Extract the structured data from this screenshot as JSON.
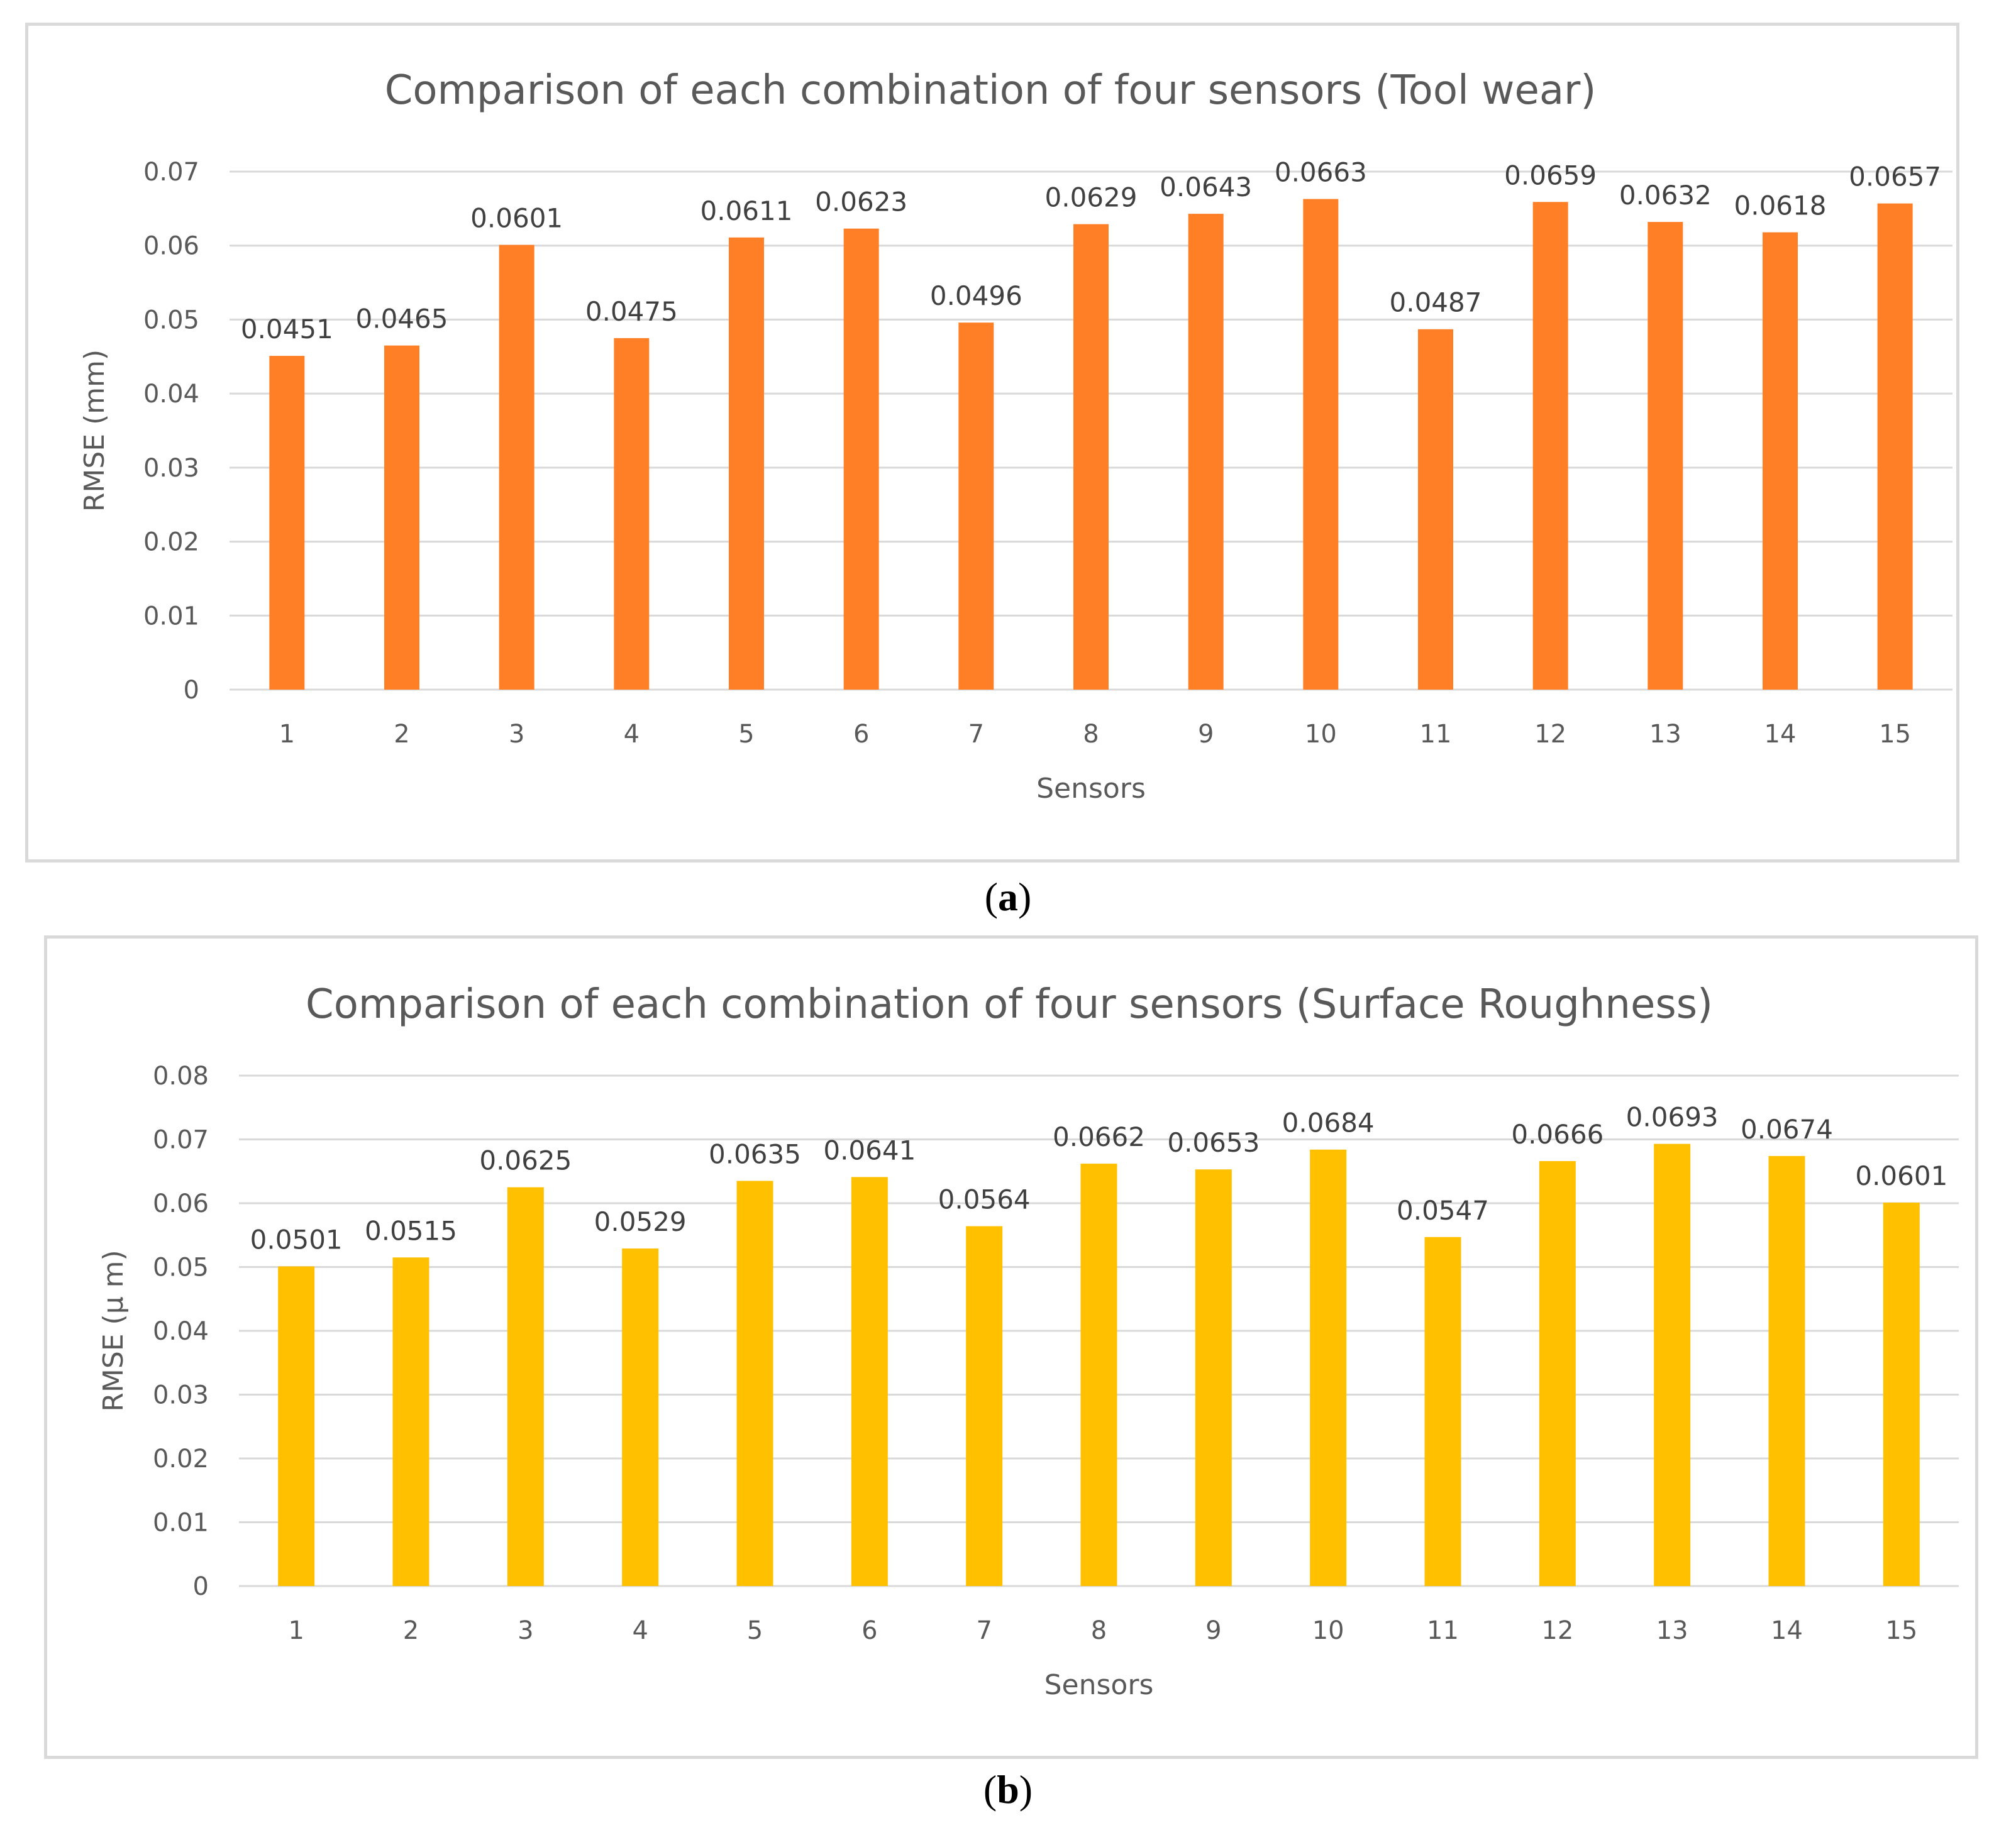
{
  "chart_data": [
    {
      "type": "bar",
      "title": "Comparison of each combination of four sensors (Tool wear)",
      "xlabel": "Sensors",
      "ylabel": "RMSE (mm)",
      "categories": [
        "1",
        "2",
        "3",
        "4",
        "5",
        "6",
        "7",
        "8",
        "9",
        "10",
        "11",
        "12",
        "13",
        "14",
        "15"
      ],
      "values": [
        0.0451,
        0.0465,
        0.0601,
        0.0475,
        0.0611,
        0.0623,
        0.0496,
        0.0629,
        0.0643,
        0.0663,
        0.0487,
        0.0659,
        0.0632,
        0.0618,
        0.0657
      ],
      "labels": [
        "0.0451",
        "0.0465",
        "0.0601",
        "0.0475",
        "0.0611",
        "0.0623",
        "0.0496",
        "0.0629",
        "0.0643",
        "0.0663",
        "0.0487",
        "0.0659",
        "0.0632",
        "0.0618",
        "0.0657"
      ],
      "yticks": [
        "0",
        "0.01",
        "0.02",
        "0.03",
        "0.04",
        "0.05",
        "0.06",
        "0.07"
      ],
      "ylim": [
        0,
        0.07
      ],
      "color": "#ff7f27",
      "grid": true,
      "caption_open": "(",
      "caption_letter": "a",
      "caption_close": ")"
    },
    {
      "type": "bar",
      "title": "Comparison of each combination of four sensors (Surface Roughness)",
      "xlabel": "Sensors",
      "ylabel": "RMSE (μ m)",
      "categories": [
        "1",
        "2",
        "3",
        "4",
        "5",
        "6",
        "7",
        "8",
        "9",
        "10",
        "11",
        "12",
        "13",
        "14",
        "15"
      ],
      "values": [
        0.0501,
        0.0515,
        0.0625,
        0.0529,
        0.0635,
        0.0641,
        0.0564,
        0.0662,
        0.0653,
        0.0684,
        0.0547,
        0.0666,
        0.0693,
        0.0674,
        0.0601
      ],
      "labels": [
        "0.0501",
        "0.0515",
        "0.0625",
        "0.0529",
        "0.0635",
        "0.0641",
        "0.0564",
        "0.0662",
        "0.0653",
        "0.0684",
        "0.0547",
        "0.0666",
        "0.0693",
        "0.0674",
        "0.0601"
      ],
      "yticks": [
        "0",
        "0.01",
        "0.02",
        "0.03",
        "0.04",
        "0.05",
        "0.06",
        "0.07",
        "0.08"
      ],
      "ylim": [
        0,
        0.08
      ],
      "color": "#ffc000",
      "grid": true,
      "caption_open": "(",
      "caption_letter": "b",
      "caption_close": ")"
    }
  ]
}
